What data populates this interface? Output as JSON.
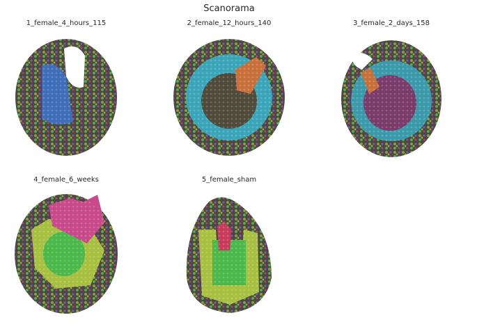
{
  "title": "Scanorama",
  "panels": [
    {
      "title": "1_female_4_hours_115"
    },
    {
      "title": "2_female_12_hours_140"
    },
    {
      "title": "3_female_2_days_158"
    },
    {
      "title": "4_female_6_weeks"
    },
    {
      "title": "5_female_sham"
    }
  ]
}
